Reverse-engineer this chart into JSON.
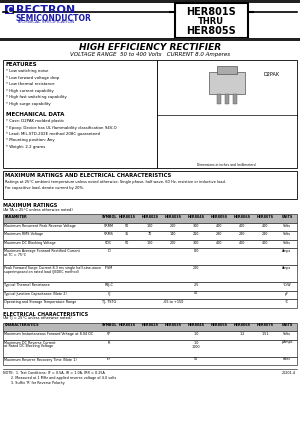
{
  "title_main": "HIGH EFFICIENCY RECTIFIER",
  "title_sub": "VOLTAGE RANGE  50 to 400 Volts   CURRENT 8.0 Amperes",
  "part_number_top": "HER801S",
  "part_number_thru": "THRU",
  "part_number_bot": "HER805S",
  "company_name": "RECTRON",
  "company_sub": "SEMICONDUCTOR",
  "company_tech": "TECHNICAL SPECIFICATION",
  "features_title": "FEATURES",
  "features": [
    "* Low switching noise",
    "* Low forward voltage drop",
    "* Low thermal resistance",
    "* High current capability",
    "* High fast switching capability",
    "* High surge capability"
  ],
  "mechanical_title": "MECHANICAL DATA",
  "mechanical": [
    "* Case: D2PAK molded plastic",
    "* Epoxy: Device has UL flammability classification 94V-O",
    "* Lead: MIL-STD-202E method 208C guaranteed",
    "* Mounting position: Any",
    "* Weight: 2.2 grams"
  ],
  "max_ratings_box_title": "MAXIMUM RATINGS AND ELECTRICAL CHARACTERISTICS",
  "max_ratings_box_line1": "Ratings at 25°C ambient temperature unless noted otherwise. Single phase, half wave, 60 Hz, resistive or inductive load.",
  "max_ratings_box_line2": "For capacitive load, derate current by 20%.",
  "max_ratings_title": "MAXIMUM RATINGS",
  "max_ratings_sub": "(At TA = 25°C unless otherwise noted)",
  "col_labels": [
    "PARAMETER",
    "SYMBOL",
    "HER801S",
    "HER802S",
    "HER803S",
    "HER804S",
    "HER805S",
    "HER806S",
    "HER807S",
    "UNITS"
  ],
  "max_ratings_rows": [
    [
      "Maximum Recurrent Peak Reverse Voltage",
      "VRRM",
      "50",
      "100",
      "200",
      "300",
      "400",
      "400",
      "400",
      "Volts"
    ],
    [
      "Maximum RMS Voltage",
      "VRMS",
      "35",
      "70",
      "140",
      "210",
      "280",
      "280",
      "280",
      "Volts"
    ],
    [
      "Maximum DC Blocking Voltage",
      "VDC",
      "50",
      "100",
      "200",
      "300",
      "400",
      "400",
      "400",
      "Volts"
    ],
    [
      "Maximum Average Forward Rectified Current\nat TC = 75°C",
      "IO",
      "",
      "",
      "",
      "8.0",
      "",
      "",
      "",
      "Amps"
    ],
    [
      "Peak Forward Surge Current 8.3 ms single half-sine-wave\nsuperimposed on rated load (JEDEC method)",
      "IFSM",
      "",
      "",
      "",
      "200",
      "",
      "",
      "",
      "Amps"
    ],
    [
      "Typical Thermal Resistance",
      "RθJ-C",
      "",
      "",
      "",
      "2.5",
      "",
      "",
      "",
      "°C/W"
    ],
    [
      "Typical Junction Capacitance (Note 2)",
      "CJ",
      "",
      "",
      "",
      "40",
      "",
      "",
      "",
      "pF"
    ],
    [
      "Operating and Storage Temperature Range",
      "TJ, TSTG",
      "",
      "",
      "-65 to +150",
      "",
      "",
      "",
      "",
      "°C"
    ]
  ],
  "elec_char_title": "ELECTRICAL CHARACTERISTICS",
  "elec_char_sub": "(At TJ = 25°C unless otherwise noted)",
  "elec_char_col_labels": [
    "CHARACTERISTICS",
    "SYMBOL",
    "HER801S",
    "HER802S",
    "HER803S",
    "HER804S",
    "HER805S",
    "HER806S",
    "HER807S",
    "UNITS"
  ],
  "elec_char_rows": [
    [
      "Maximum Instantaneous Forward Voltage at 8.04 DC",
      "VF",
      "",
      "",
      "",
      "1.0",
      "",
      "1.2",
      "1.51",
      "Volts"
    ],
    [
      "Maximum DC Reverse Current\nat Rated DC Blocking Voltage",
      "IR",
      "",
      "",
      "",
      "1.0\n1000",
      "",
      "",
      "",
      "μAmps"
    ],
    [
      "Maximum Reverse Recovery Time (Note 1)",
      "trr",
      "",
      "",
      "",
      "50",
      "",
      "",
      "",
      "nSec"
    ]
  ],
  "notes": [
    "NOTE:  1. Test Conditions: IF = 0.5A, IR = 1.0A, IRR = 0.25A",
    "       2. Measured at 1 MHz and applied reverse voltage of 4.0 volts",
    "       3. Suffix 'R' for Reverse Polarity"
  ],
  "package_label": "D2PAK",
  "revision": "20201-4",
  "bg_color": "#ffffff",
  "blue_color": "#1a1aaa",
  "gray_header": "#b8b8b8",
  "orange_color": "#cc5500"
}
